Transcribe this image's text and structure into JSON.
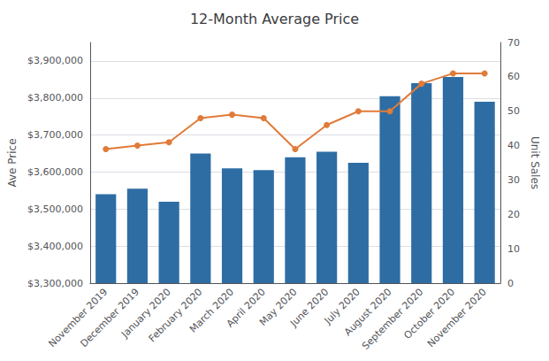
{
  "chart_data": {
    "type": "bar",
    "title": "12-Month Average Price",
    "categories": [
      "November 2019",
      "December 2019",
      "January 2020",
      "February 2020",
      "March 2020",
      "April 2020",
      "May 2020",
      "June 2020",
      "July 2020",
      "August 2020",
      "September 2020",
      "October 2020",
      "November 2020"
    ],
    "series": [
      {
        "type": "bar",
        "color": "#2E6DA4",
        "values": [
          3540000,
          3555000,
          3520000,
          3650000,
          3610000,
          3605000,
          3640000,
          3655000,
          3625000,
          3805000,
          3840000,
          3857000,
          3790000
        ]
      },
      {
        "type": "line",
        "color": "#E07B39",
        "marker": "circle",
        "axis": "y2",
        "values": [
          39,
          40,
          41,
          48,
          49,
          48,
          39,
          46,
          50,
          50,
          58,
          61,
          61
        ]
      }
    ],
    "ylabel": "Ave Price",
    "y2label": "Unit Sales",
    "ylim": [
      3300000,
      3950000
    ],
    "yticks": [
      {
        "value": 3300000,
        "label": "$3,300,000"
      },
      {
        "value": 3400000,
        "label": "$3,400,000"
      },
      {
        "value": 3500000,
        "label": "$3,500,000"
      },
      {
        "value": 3600000,
        "label": "$3,600,000"
      },
      {
        "value": 3700000,
        "label": "$3,700,000"
      },
      {
        "value": 3800000,
        "label": "$3,800,000"
      },
      {
        "value": 3900000,
        "label": "$3,900,000"
      }
    ],
    "y2lim": [
      0,
      70
    ],
    "y2ticks": [
      0,
      10,
      20,
      30,
      40,
      50,
      60,
      70
    ],
    "grid": true
  }
}
